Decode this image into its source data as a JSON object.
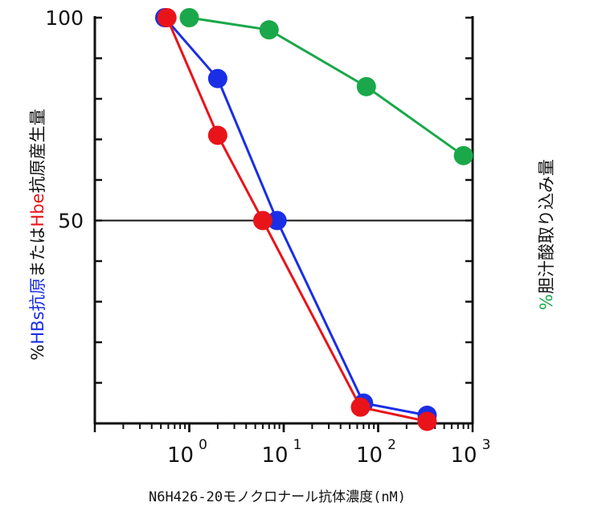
{
  "chart_data": {
    "type": "line",
    "xlabel": "N6H426-20モノクロナール抗体濃度(nM)",
    "x_scale": "log",
    "xlim": [
      0.1,
      1000
    ],
    "x_ticks": [
      {
        "base": "10",
        "exp": "0"
      },
      {
        "base": "10",
        "exp": "1"
      },
      {
        "base": "10",
        "exp": "2"
      },
      {
        "base": "10",
        "exp": "3"
      }
    ],
    "ylabel_left": [
      {
        "text": "%",
        "color": "#111111"
      },
      {
        "text": "HBs抗原",
        "color": "#1a2ee6"
      },
      {
        "text": "または",
        "color": "#111111"
      },
      {
        "text": "Hbe",
        "color": "#e8141a"
      },
      {
        "text": "抗原産生量",
        "color": "#111111"
      }
    ],
    "ylabel_right": [
      {
        "text": "%",
        "color": "#1aa84a"
      },
      {
        "text": "胆汁酸取り込み量",
        "color": "#111111"
      }
    ],
    "ylim": [
      0,
      100
    ],
    "y_tick_labels": [
      {
        "value": 100,
        "label": "100"
      },
      {
        "value": 50,
        "label": "50"
      }
    ],
    "reference_line_y": 50,
    "series": [
      {
        "color": "#1aa84a",
        "points": [
          [
            1.0,
            100
          ],
          [
            7.0,
            97
          ],
          [
            75,
            83
          ],
          [
            800,
            66
          ]
        ]
      },
      {
        "color": "#1a2ee6",
        "points": [
          [
            0.55,
            100
          ],
          [
            2.0,
            85
          ],
          [
            8.5,
            50
          ],
          [
            70,
            5
          ],
          [
            330,
            2
          ]
        ]
      },
      {
        "color": "#e8141a",
        "points": [
          [
            0.58,
            100
          ],
          [
            2.0,
            71
          ],
          [
            6.0,
            50
          ],
          [
            65,
            4
          ],
          [
            330,
            0.5
          ]
        ]
      }
    ],
    "colors": {
      "axis": "#111111",
      "gray_shadow": "#555555"
    }
  }
}
